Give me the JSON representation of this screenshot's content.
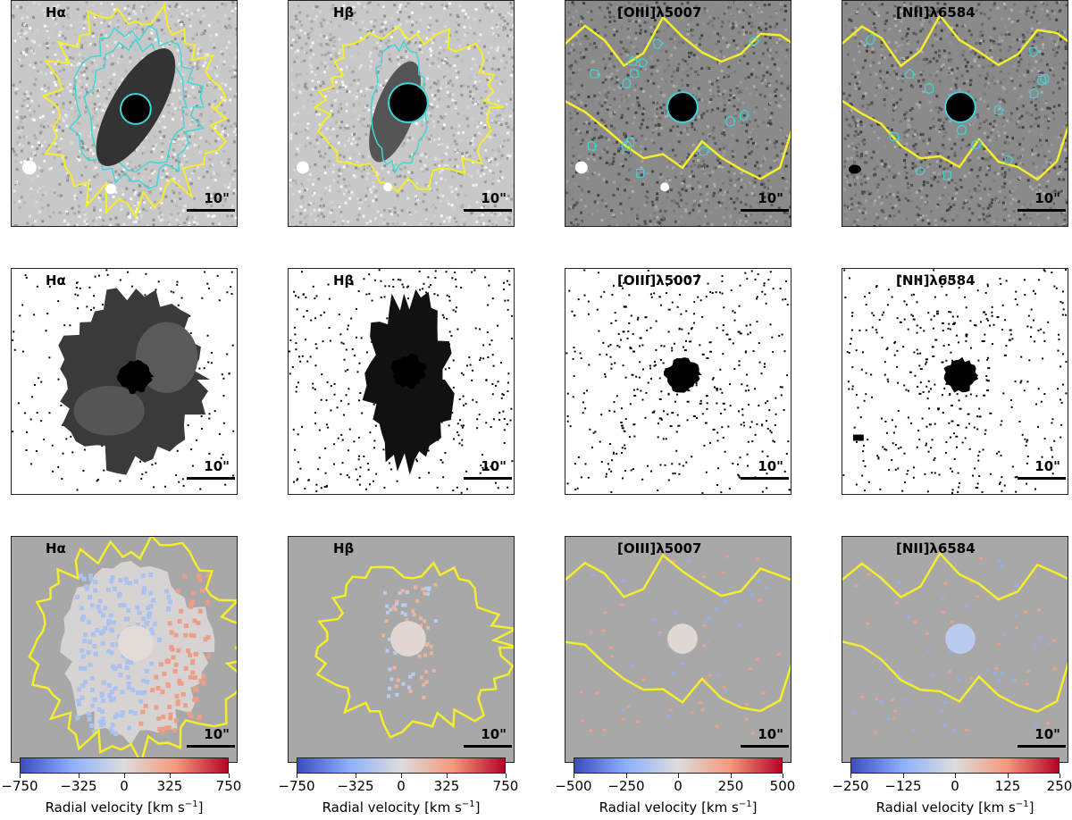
{
  "figure": {
    "scalebar_label": "10\"",
    "rows": [
      {
        "name": "flux-contour-row",
        "panels": [
          {
            "line": "Hα"
          },
          {
            "line": "Hβ"
          },
          {
            "line": "[OIII]λ5007"
          },
          {
            "line": "[NII]λ6584"
          }
        ]
      },
      {
        "name": "mask-row",
        "panels": [
          {
            "line": "Hα"
          },
          {
            "line": "Hβ"
          },
          {
            "line": "[OIII]λ5007"
          },
          {
            "line": "[NII]λ6584"
          }
        ]
      },
      {
        "name": "velocity-row",
        "panels": [
          {
            "line": "Hα"
          },
          {
            "line": "Hβ"
          },
          {
            "line": "[OIII]λ5007"
          },
          {
            "line": "[NII]λ6584"
          }
        ]
      }
    ],
    "colorbars": [
      {
        "ticks": [
          "−750",
          "−325",
          "0",
          "325",
          "750"
        ],
        "range": [
          -750,
          750
        ],
        "label": "Radial velocity [km s",
        "label_sup": "−1",
        "label_end": "]"
      },
      {
        "ticks": [
          "−750",
          "−325",
          "0",
          "325",
          "750"
        ],
        "range": [
          -750,
          750
        ],
        "label": "Radial velocity [km s",
        "label_sup": "−1",
        "label_end": "]"
      },
      {
        "ticks": [
          "−500",
          "−250",
          "0",
          "250",
          "500"
        ],
        "range": [
          -500,
          500
        ],
        "label": "Radial velocity [km s",
        "label_sup": "−1",
        "label_end": "]"
      },
      {
        "ticks": [
          "−250",
          "−125",
          "0",
          "125",
          "250"
        ],
        "range": [
          -250,
          250
        ],
        "label": "Radial velocity [km s",
        "label_sup": "−1",
        "label_end": "]"
      }
    ],
    "colors": {
      "contour_outer": "#f5ee2a",
      "contour_inner": "#3fd6d8",
      "velocity_background": "#a8a8a8",
      "colormap": "coolwarm"
    }
  }
}
